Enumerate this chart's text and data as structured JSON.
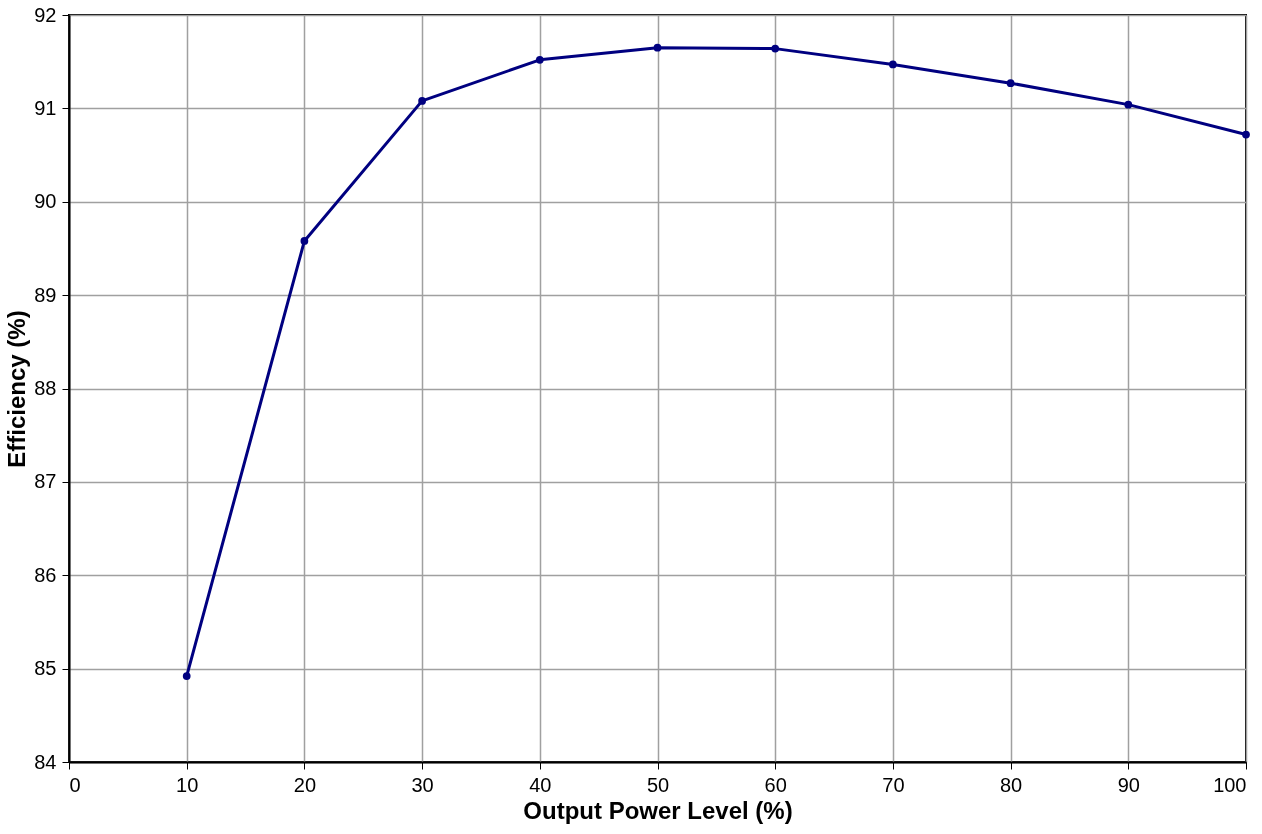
{
  "chart_data": {
    "type": "line",
    "xlabel": "Output Power Level (%)",
    "ylabel": "Efficiency (%)",
    "x": [
      10,
      20,
      30,
      40,
      50,
      60,
      70,
      80,
      90,
      100
    ],
    "series": [
      {
        "color": "#000080",
        "values": [
          84.92,
          89.58,
          91.08,
          91.52,
          91.65,
          91.64,
          91.47,
          91.27,
          91.04,
          90.72
        ]
      }
    ],
    "xlim": [
      0,
      100
    ],
    "xticks": [
      0,
      10,
      20,
      30,
      40,
      50,
      60,
      70,
      80,
      90,
      100
    ],
    "ylim": [
      84,
      92
    ],
    "yticks": [
      84,
      85,
      86,
      87,
      88,
      89,
      90,
      91,
      92
    ],
    "grid": true,
    "marker": "circle",
    "line_style": "solid"
  }
}
